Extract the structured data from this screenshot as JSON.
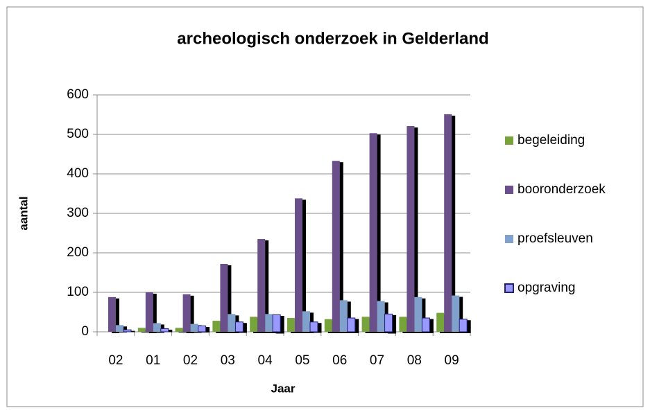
{
  "chart_data": {
    "type": "bar",
    "title": "archeologisch onderzoek in Gelderland",
    "x_label": "Jaar",
    "y_label": "aantal",
    "categories": [
      "02",
      "01",
      "02",
      "03",
      "04",
      "05",
      "06",
      "07",
      "08",
      "09"
    ],
    "series": [
      {
        "name": "begeleiding",
        "color": "#77a33a",
        "values": [
          0,
          10,
          10,
          28,
          38,
          35,
          32,
          38,
          38,
          48
        ]
      },
      {
        "name": "booronderzoek",
        "color": "#6a4f8a",
        "values": [
          88,
          100,
          95,
          172,
          235,
          338,
          433,
          503,
          521,
          551
        ]
      },
      {
        "name": "proefsleuven",
        "color": "#7fa1cc",
        "values": [
          17,
          22,
          20,
          45,
          45,
          52,
          80,
          78,
          88,
          92
        ]
      },
      {
        "name": "opgraving",
        "color": "#9999ff",
        "values": [
          5,
          8,
          15,
          25,
          43,
          25,
          35,
          45,
          35,
          32
        ]
      }
    ],
    "ylim": [
      0,
      600
    ],
    "yticks": [
      0,
      100,
      200,
      300,
      400,
      500,
      600
    ],
    "grid": true,
    "legend": "right"
  }
}
